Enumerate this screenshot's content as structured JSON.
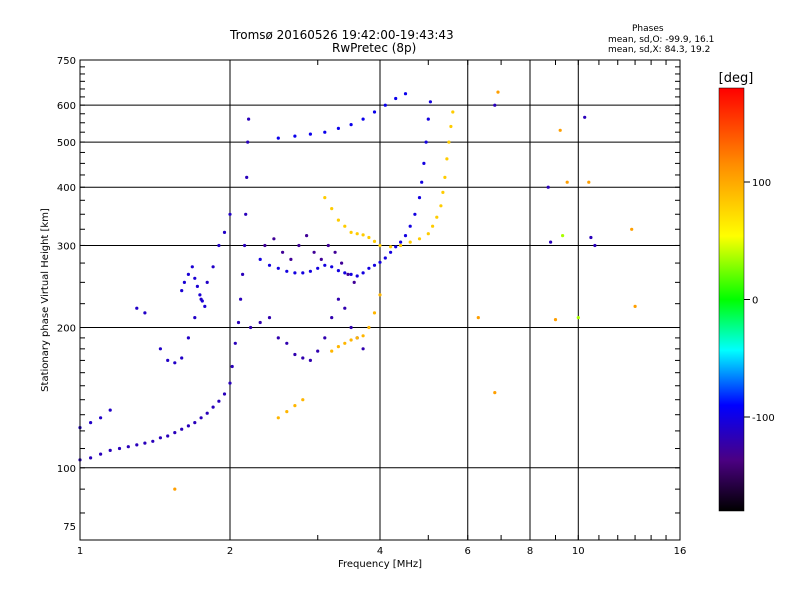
{
  "header": {
    "title_line1": "Tromsø 20160526 19:42:00-19:43:43",
    "title_line2": "RwPretec (8p)"
  },
  "stats": {
    "heading": "Phases",
    "line_o": "mean, sd,O: -99.9, 16.1",
    "line_x": "mean, sd,X:  84.3, 19.2"
  },
  "chart_data": {
    "type": "scatter",
    "title": "Tromsø 20160526 19:42:00-19:43:43",
    "subtitle": "RwPretec (8p)",
    "xlabel": "Frequency [MHz]",
    "ylabel": "Stationary phase Virtual Height [km]",
    "xscale": "log",
    "yscale": "log",
    "xlim": [
      1,
      16
    ],
    "ylim": [
      70,
      750
    ],
    "x_ticks": [
      1,
      2,
      4,
      6,
      8,
      10,
      16
    ],
    "x_grid": [
      2,
      4,
      6,
      8,
      10
    ],
    "y_ticks": [
      75,
      100,
      200,
      300,
      400,
      500,
      600,
      750
    ],
    "y_grid": [
      100,
      200,
      300,
      400,
      500,
      600
    ],
    "grid": true,
    "colorbar": {
      "label": "[deg]",
      "ticks": [
        100,
        0,
        -100
      ],
      "range": [
        -180,
        180
      ],
      "colors": [
        "#000000",
        "#4b0082",
        "#0000ff",
        "#00ffff",
        "#00ff00",
        "#ffff00",
        "#ff8c00",
        "#ff0000"
      ]
    },
    "series": [
      {
        "phase": -105,
        "points": [
          [
            1.0,
            104
          ],
          [
            1.05,
            105
          ],
          [
            1.1,
            107
          ],
          [
            1.15,
            109
          ],
          [
            1.2,
            110
          ],
          [
            1.25,
            111
          ],
          [
            1.3,
            112
          ],
          [
            1.35,
            113
          ],
          [
            1.4,
            114
          ],
          [
            1.45,
            116
          ],
          [
            1.5,
            117
          ],
          [
            1.55,
            119
          ],
          [
            1.6,
            121
          ],
          [
            1.65,
            123
          ],
          [
            1.7,
            125
          ],
          [
            1.75,
            128
          ],
          [
            1.8,
            131
          ],
          [
            1.85,
            135
          ],
          [
            1.9,
            139
          ],
          [
            1.95,
            144
          ],
          [
            2.0,
            152
          ],
          [
            2.02,
            165
          ],
          [
            2.05,
            185
          ],
          [
            2.08,
            205
          ],
          [
            2.1,
            230
          ],
          [
            2.12,
            260
          ],
          [
            2.14,
            300
          ],
          [
            2.15,
            350
          ],
          [
            2.16,
            420
          ],
          [
            2.17,
            500
          ],
          [
            2.18,
            560
          ]
        ]
      },
      {
        "phase": -100,
        "points": [
          [
            1.0,
            122
          ],
          [
            1.05,
            125
          ],
          [
            1.1,
            128
          ],
          [
            1.15,
            133
          ],
          [
            1.3,
            220
          ],
          [
            1.35,
            215
          ],
          [
            1.45,
            180
          ],
          [
            1.5,
            170
          ],
          [
            1.55,
            168
          ],
          [
            1.6,
            172
          ],
          [
            1.65,
            190
          ],
          [
            1.7,
            210
          ],
          [
            1.75,
            230
          ],
          [
            1.8,
            250
          ],
          [
            1.85,
            270
          ],
          [
            1.9,
            300
          ],
          [
            1.95,
            320
          ],
          [
            2.0,
            350
          ]
        ]
      },
      {
        "phase": -95,
        "points": [
          [
            1.6,
            240
          ],
          [
            1.62,
            250
          ],
          [
            1.65,
            260
          ],
          [
            1.68,
            270
          ],
          [
            1.7,
            255
          ],
          [
            1.72,
            245
          ],
          [
            1.74,
            235
          ],
          [
            1.76,
            228
          ],
          [
            1.78,
            222
          ]
        ]
      },
      {
        "phase": -90,
        "points": [
          [
            2.3,
            280
          ],
          [
            2.4,
            272
          ],
          [
            2.5,
            268
          ],
          [
            2.6,
            264
          ],
          [
            2.7,
            262
          ],
          [
            2.8,
            262
          ],
          [
            2.9,
            264
          ],
          [
            3.0,
            268
          ],
          [
            3.1,
            272
          ],
          [
            3.2,
            270
          ],
          [
            3.3,
            265
          ],
          [
            3.4,
            262
          ],
          [
            3.5,
            260
          ],
          [
            3.6,
            258
          ],
          [
            3.7,
            262
          ],
          [
            3.8,
            268
          ],
          [
            3.9,
            272
          ],
          [
            4.0,
            276
          ],
          [
            4.1,
            282
          ],
          [
            4.2,
            290
          ],
          [
            4.3,
            298
          ],
          [
            4.4,
            305
          ],
          [
            4.5,
            315
          ],
          [
            4.6,
            330
          ],
          [
            4.7,
            350
          ],
          [
            4.8,
            380
          ],
          [
            4.85,
            410
          ],
          [
            4.9,
            450
          ],
          [
            4.95,
            500
          ],
          [
            5.0,
            560
          ],
          [
            5.05,
            610
          ]
        ]
      },
      {
        "phase": -85,
        "points": [
          [
            2.5,
            510
          ],
          [
            2.7,
            515
          ],
          [
            2.9,
            520
          ],
          [
            3.1,
            525
          ],
          [
            3.3,
            535
          ],
          [
            3.5,
            545
          ],
          [
            3.7,
            560
          ],
          [
            3.9,
            580
          ],
          [
            4.1,
            600
          ],
          [
            4.3,
            620
          ],
          [
            4.5,
            635
          ]
        ]
      },
      {
        "phase": -110,
        "points": [
          [
            2.2,
            200
          ],
          [
            2.3,
            205
          ],
          [
            2.4,
            210
          ],
          [
            2.5,
            190
          ],
          [
            2.6,
            185
          ],
          [
            2.7,
            175
          ],
          [
            2.8,
            172
          ],
          [
            2.9,
            170
          ],
          [
            3.0,
            178
          ],
          [
            3.1,
            190
          ],
          [
            3.2,
            210
          ],
          [
            3.3,
            230
          ],
          [
            3.4,
            220
          ],
          [
            3.5,
            200
          ],
          [
            3.6,
            190
          ],
          [
            3.7,
            180
          ]
        ]
      },
      {
        "phase": -120,
        "points": [
          [
            2.35,
            300
          ],
          [
            2.45,
            310
          ],
          [
            2.55,
            290
          ],
          [
            2.65,
            280
          ],
          [
            2.75,
            300
          ],
          [
            2.85,
            315
          ],
          [
            2.95,
            290
          ],
          [
            3.05,
            280
          ],
          [
            3.15,
            300
          ],
          [
            3.25,
            290
          ],
          [
            3.35,
            275
          ],
          [
            3.45,
            260
          ],
          [
            3.55,
            250
          ]
        ]
      },
      {
        "phase": 100,
        "points": [
          [
            3.1,
            380
          ],
          [
            3.2,
            360
          ],
          [
            3.3,
            340
          ],
          [
            3.4,
            330
          ],
          [
            3.5,
            320
          ],
          [
            3.6,
            318
          ],
          [
            3.7,
            316
          ],
          [
            3.8,
            312
          ],
          [
            3.9,
            306
          ],
          [
            4.0,
            300
          ],
          [
            4.2,
            298
          ],
          [
            4.4,
            300
          ],
          [
            4.6,
            305
          ],
          [
            4.8,
            310
          ],
          [
            5.0,
            318
          ],
          [
            5.1,
            330
          ],
          [
            5.2,
            345
          ],
          [
            5.3,
            365
          ],
          [
            5.35,
            390
          ],
          [
            5.4,
            420
          ],
          [
            5.45,
            460
          ],
          [
            5.5,
            500
          ],
          [
            5.55,
            540
          ],
          [
            5.6,
            580
          ]
        ]
      },
      {
        "phase": 110,
        "points": [
          [
            3.2,
            178
          ],
          [
            3.3,
            182
          ],
          [
            3.4,
            185
          ],
          [
            3.5,
            188
          ],
          [
            3.6,
            190
          ],
          [
            3.7,
            192
          ],
          [
            3.8,
            200
          ],
          [
            3.9,
            215
          ],
          [
            4.0,
            235
          ],
          [
            2.5,
            128
          ],
          [
            2.6,
            132
          ],
          [
            2.7,
            136
          ],
          [
            2.8,
            140
          ]
        ]
      },
      {
        "phase": 120,
        "points": [
          [
            1.55,
            90
          ],
          [
            6.3,
            210
          ],
          [
            6.8,
            145
          ],
          [
            6.9,
            640
          ],
          [
            9.2,
            530
          ],
          [
            9.5,
            410
          ],
          [
            10.5,
            410
          ],
          [
            12.8,
            325
          ],
          [
            13.0,
            222
          ],
          [
            9.0,
            208
          ]
        ]
      },
      {
        "phase": -105,
        "points": [
          [
            6.8,
            600
          ],
          [
            8.7,
            400
          ],
          [
            8.8,
            305
          ],
          [
            10.3,
            565
          ],
          [
            10.8,
            300
          ],
          [
            10.6,
            312
          ]
        ]
      },
      {
        "phase": 60,
        "points": [
          [
            10.0,
            210
          ],
          [
            9.3,
            315
          ]
        ]
      }
    ]
  }
}
